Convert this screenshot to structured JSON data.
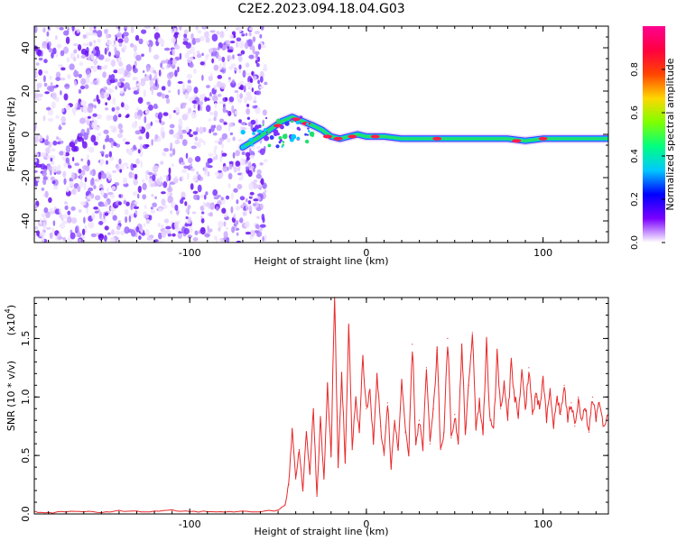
{
  "title": "C2E2.2023.094.18.04.G03",
  "chart_data": [
    {
      "type": "heatmap",
      "xlabel": "Height of straight line (km)",
      "ylabel": "Frequency (Hz)",
      "xlim": [
        -188,
        137
      ],
      "ylim": [
        -50,
        50
      ],
      "xticks": [
        -100,
        0,
        100
      ],
      "xtick_labels": [
        "-100",
        "0",
        "100"
      ],
      "yticks": [
        40,
        20,
        0,
        -20,
        -40
      ],
      "ytick_labels": [
        "40",
        "20",
        "0",
        "-20",
        "-40"
      ],
      "noise_region_x": [
        -188,
        -60
      ],
      "ridge": {
        "x": [
          -70,
          -62,
          -55,
          -48,
          -42,
          -36,
          -30,
          -25,
          -20,
          -15,
          -10,
          -5,
          0,
          10,
          20,
          40,
          60,
          80,
          90,
          100,
          110,
          120,
          137
        ],
        "y": [
          -6,
          -2,
          2,
          6,
          8,
          6,
          4,
          2,
          -1,
          -2,
          -1,
          0,
          -1,
          -1,
          -2,
          -2,
          -2,
          -2,
          -3,
          -2,
          -2,
          -2,
          -2
        ]
      },
      "colorbar": {
        "label": "Normalized spectral amplitude",
        "range": [
          0,
          1
        ],
        "ticks": [
          0.0,
          0.2,
          0.4,
          0.6,
          0.8
        ],
        "tick_labels": [
          "0.0",
          "0.2",
          "0.4",
          "0.6",
          "0.8"
        ],
        "colors": [
          "#ffffff",
          "#7a00ff",
          "#0000ff",
          "#00c8ff",
          "#00ff7f",
          "#7fff00",
          "#ffd700",
          "#ff4500",
          "#ff0040",
          "#ff0090"
        ]
      }
    },
    {
      "type": "line",
      "xlabel": "Height of straight line (km)",
      "ylabel": "SNR (10 * v/v)",
      "y_multiplier": "(x10",
      "y_multiplier_exp": "4",
      "y_multiplier_close": ")",
      "xlim": [
        -188,
        137
      ],
      "ylim": [
        0,
        1.85
      ],
      "xticks": [
        -100,
        0,
        100
      ],
      "xtick_labels": [
        "-100",
        "0",
        "100"
      ],
      "yticks": [
        0.0,
        0.5,
        1.0,
        1.5
      ],
      "ytick_labels": [
        "0.0",
        "0.5",
        "1.0",
        "1.5"
      ],
      "line_color": "#e8282a",
      "series": [
        {
          "x": [
            -188,
            -180,
            -170,
            -160,
            -150,
            -140,
            -130,
            -120,
            -110,
            -100,
            -90,
            -80,
            -70,
            -60,
            -50,
            -46,
            -44,
            -42,
            -40,
            -38,
            -36,
            -34,
            -32,
            -30,
            -28,
            -26,
            -24,
            -22,
            -20,
            -18,
            -16,
            -14,
            -12,
            -10,
            -8,
            -6,
            -4,
            -2,
            0,
            2,
            4,
            6,
            8,
            10,
            12,
            14,
            16,
            18,
            20,
            22,
            24,
            26,
            28,
            30,
            32,
            34,
            36,
            38,
            40,
            42,
            44,
            46,
            48,
            50,
            52,
            54,
            56,
            58,
            60,
            62,
            64,
            66,
            68,
            70,
            72,
            74,
            76,
            78,
            80,
            82,
            84,
            86,
            88,
            90,
            92,
            94,
            96,
            98,
            100,
            102,
            104,
            106,
            108,
            110,
            112,
            114,
            116,
            118,
            120,
            122,
            124,
            126,
            128,
            130,
            132,
            134,
            137
          ],
          "y": [
            0.02,
            0.01,
            0.02,
            0.02,
            0.01,
            0.03,
            0.02,
            0.02,
            0.03,
            0.02,
            0.02,
            0.02,
            0.02,
            0.02,
            0.03,
            0.08,
            0.25,
            0.72,
            0.3,
            0.55,
            0.2,
            0.7,
            0.35,
            0.9,
            0.15,
            0.8,
            0.3,
            1.1,
            0.5,
            1.85,
            0.4,
            1.2,
            0.45,
            1.6,
            0.55,
            1.0,
            0.7,
            1.35,
            0.9,
            1.05,
            0.6,
            1.2,
            0.75,
            0.5,
            0.95,
            0.4,
            0.8,
            0.55,
            1.15,
            0.7,
            0.5,
            1.45,
            0.6,
            0.8,
            0.55,
            1.25,
            0.6,
            0.9,
            1.4,
            0.55,
            0.7,
            1.5,
            0.65,
            0.85,
            0.6,
            1.45,
            0.7,
            1.1,
            1.55,
            0.75,
            0.95,
            0.7,
            1.45,
            0.8,
            0.75,
            1.35,
            0.9,
            1.1,
            0.8,
            1.3,
            1.0,
            0.85,
            1.2,
            0.9,
            1.25,
            0.85,
            1.0,
            0.9,
            1.15,
            0.8,
            1.05,
            0.75,
            1.0,
            0.85,
            1.1,
            0.8,
            0.95,
            0.75,
            1.0,
            0.8,
            0.9,
            0.7,
            1.0,
            0.8,
            0.95,
            0.75,
            0.85
          ]
        }
      ]
    }
  ]
}
